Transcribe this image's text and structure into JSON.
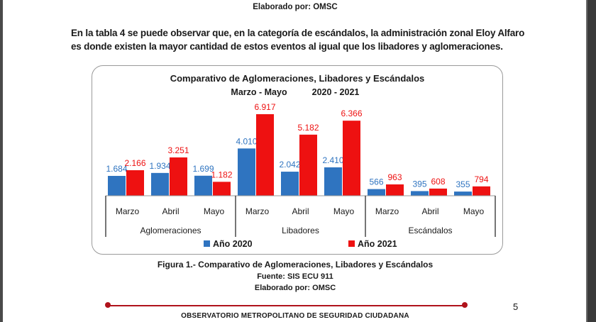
{
  "header": {
    "credit": "Elaborado por: OMSC"
  },
  "paragraph": "En la tabla 4 se puede observar que, en la categoría de escándalos, la administración zonal Eloy Alfaro es donde existen la mayor cantidad de estos eventos al igual que los libadores y aglomeraciones.",
  "chart_data": {
    "type": "bar",
    "title": "Comparativo de Aglomeraciones, Libadores y Escándalos",
    "subtitle_left": "Marzo - Mayo",
    "subtitle_right": "2020 - 2021",
    "groups": [
      "Aglomeraciones",
      "Libadores",
      "Escándalos"
    ],
    "categories": [
      "Marzo",
      "Abril",
      "Mayo",
      "Marzo",
      "Abril",
      "Mayo",
      "Marzo",
      "Abril",
      "Mayo"
    ],
    "series": [
      {
        "name": "Año 2020",
        "color": "#2f74c0",
        "values": [
          1684,
          1934,
          1699,
          4010,
          2042,
          2410,
          566,
          395,
          355
        ],
        "labels": [
          "1.684",
          "1.934",
          "1.699",
          "4.010",
          "2.042",
          "2.410",
          "566",
          "395",
          "355"
        ]
      },
      {
        "name": "Año 2021",
        "color": "#ee1111",
        "values": [
          2166,
          3251,
          1182,
          6917,
          5182,
          6366,
          963,
          608,
          794
        ],
        "labels": [
          "2.166",
          "3.251",
          "1.182",
          "6.917",
          "5.182",
          "6.366",
          "963",
          "608",
          "794"
        ]
      }
    ],
    "legend_position": "bottom",
    "grid": false
  },
  "figure": {
    "caption": "Figura 1.- Comparativo de Aglomeraciones, Libadores y Escándalos",
    "source": "Fuente: SIS ECU 911",
    "credit": "Elaborado por: OMSC"
  },
  "page_number": "5",
  "footer": "OBSERVATORIO METROPOLITANO DE SEGURIDAD CIUDADANA"
}
